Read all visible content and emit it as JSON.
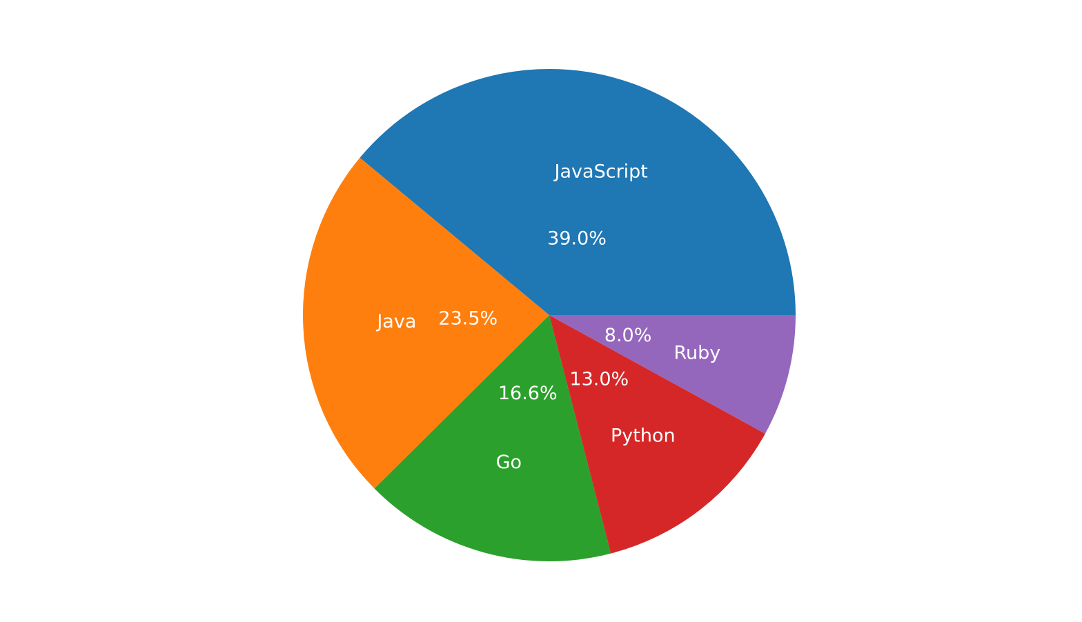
{
  "chart_data": {
    "type": "pie",
    "title": "",
    "labels": [
      "JavaScript",
      "Java",
      "Go",
      "Python",
      "Ruby"
    ],
    "values": [
      39.0,
      23.5,
      16.6,
      13.0,
      8.0
    ],
    "value_labels": [
      "39.0%",
      "23.5%",
      "16.6%",
      "13.0%",
      "8.0%"
    ],
    "colors": [
      "#1f77b4",
      "#ff7f0e",
      "#2ca02c",
      "#d62728",
      "#9467bd"
    ],
    "start_angle_deg": 0,
    "direction": "counterclockwise",
    "label_color": "#ffffff",
    "legend": "none"
  }
}
